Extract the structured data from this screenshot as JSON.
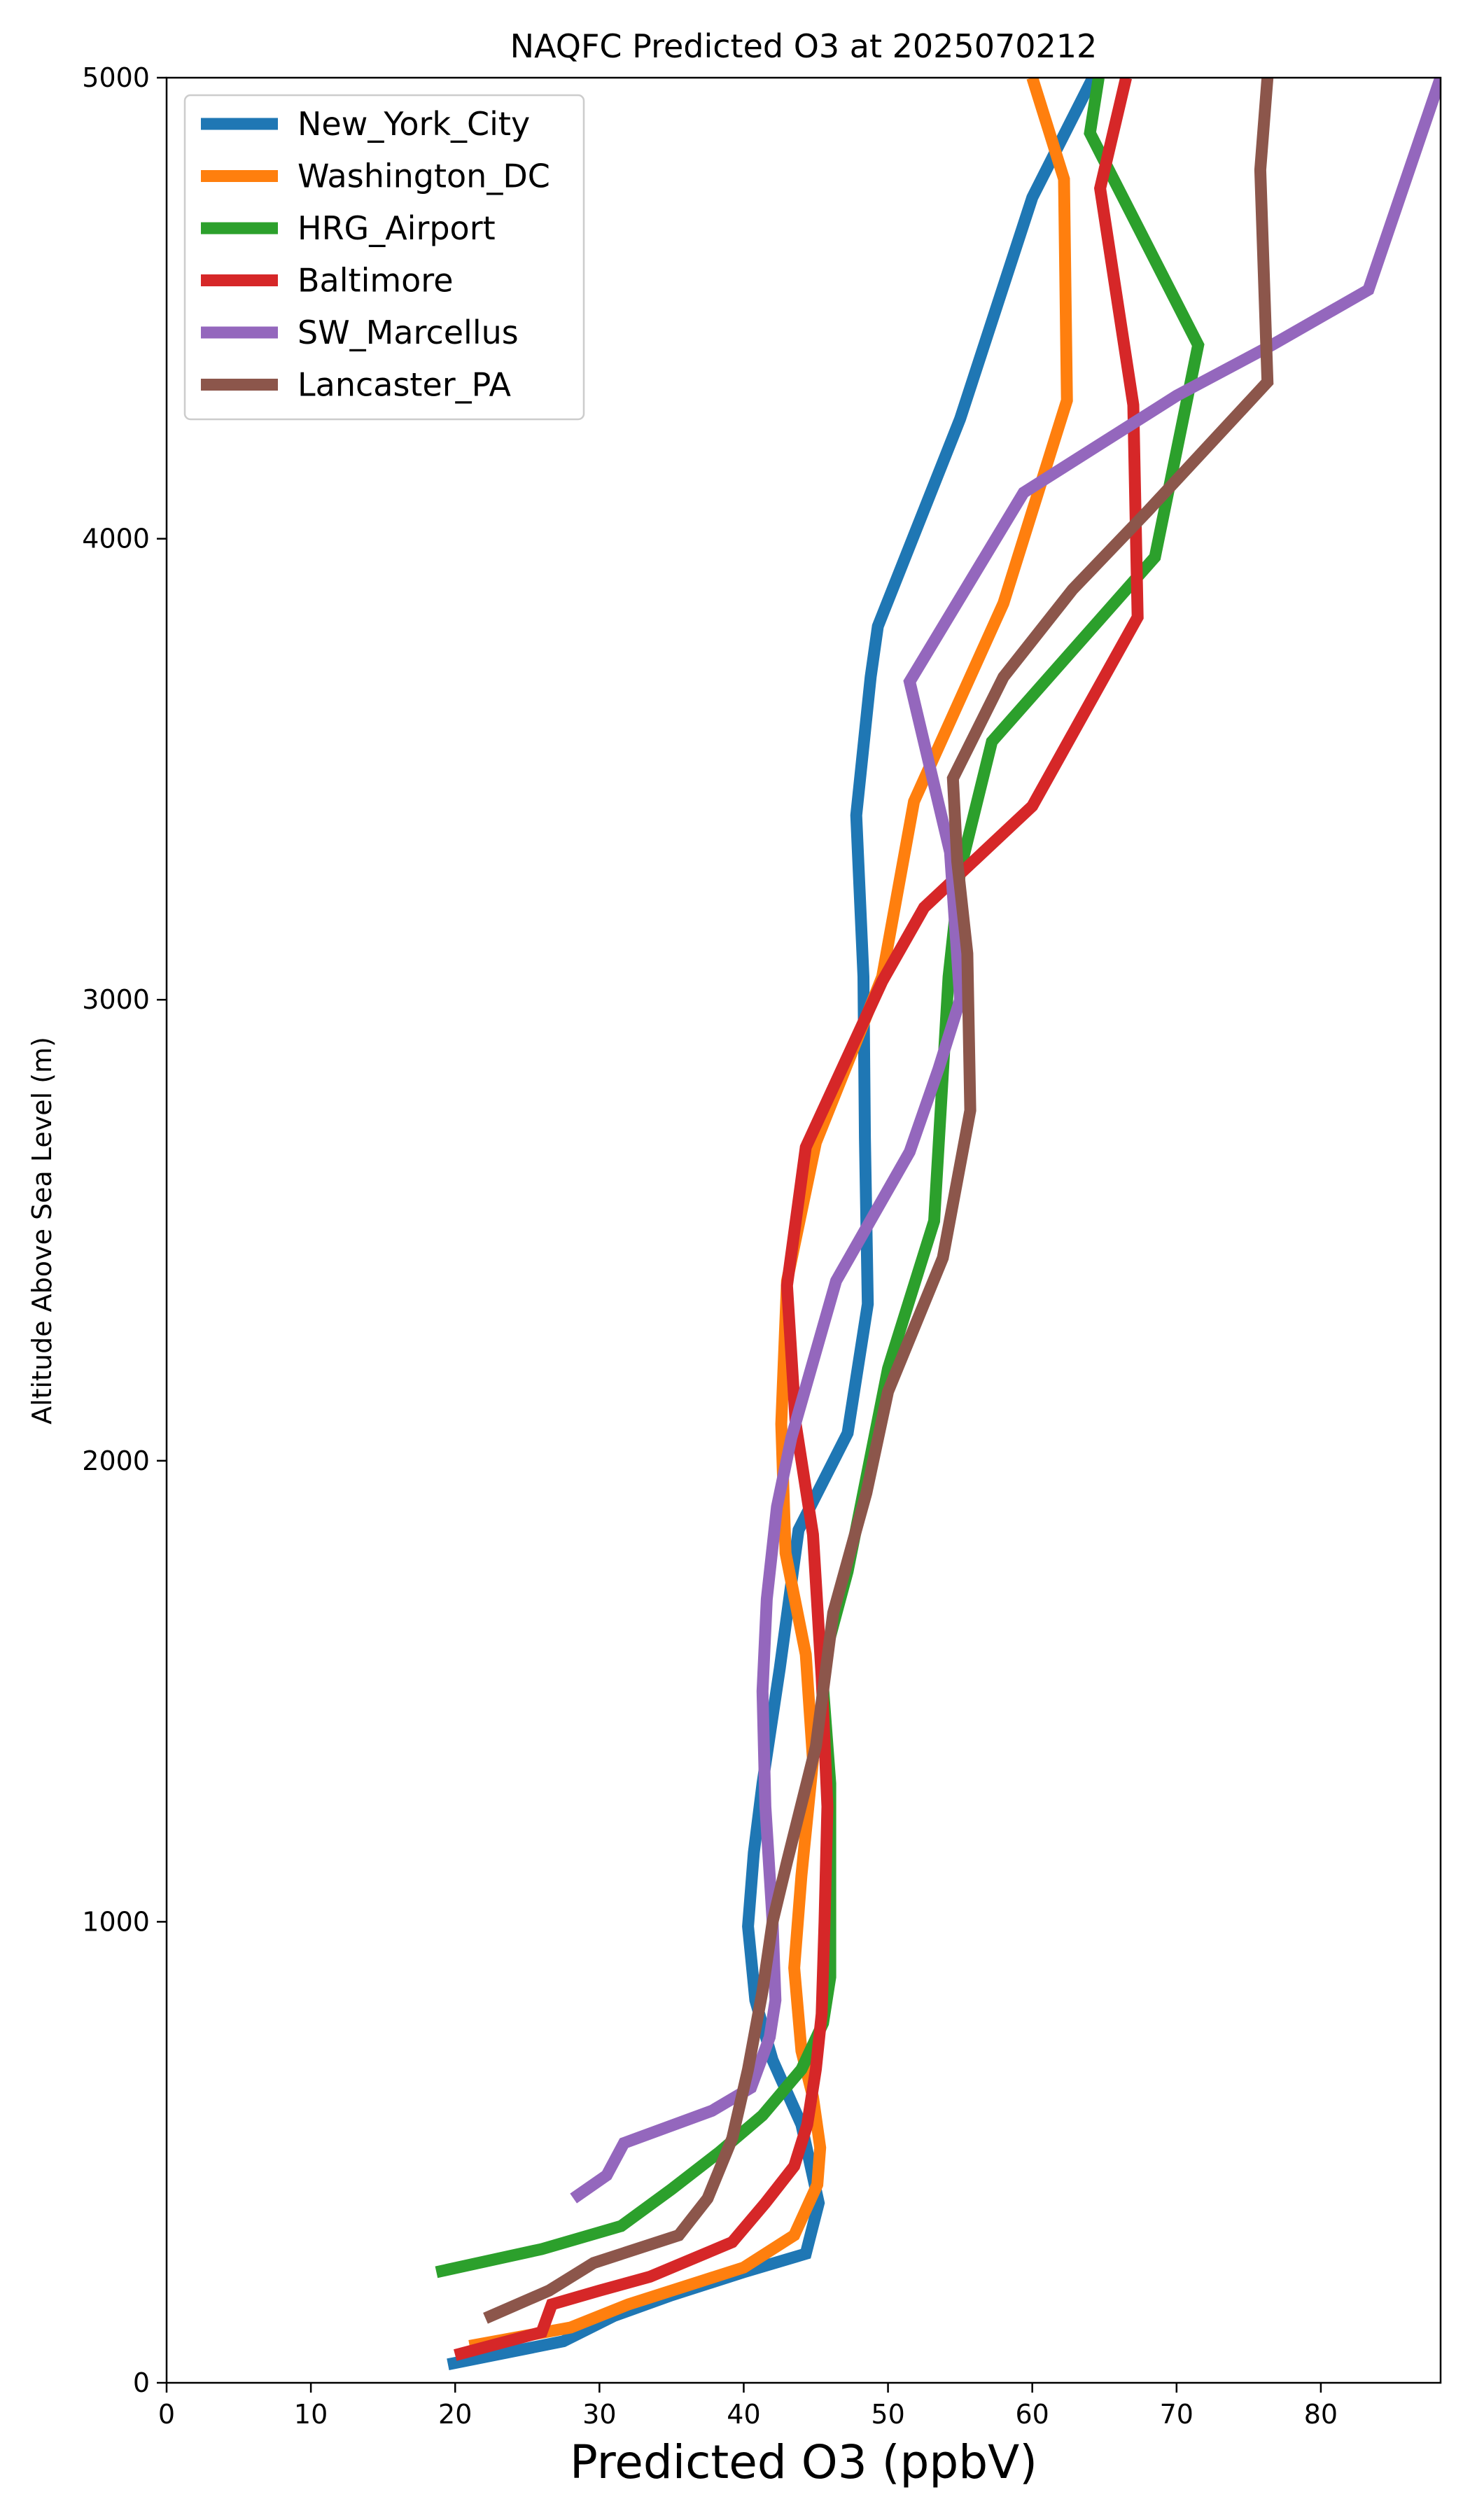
{
  "chart_data": {
    "type": "line",
    "title": "NAQFC Predicted O3 at 2025070212",
    "xlabel": "Predicted O3 (ppbV)",
    "ylabel": "Altitude Above Sea Level (m)",
    "xlim": [
      0,
      88.3
    ],
    "ylim": [
      0,
      5000
    ],
    "xticks": [
      0,
      10,
      20,
      30,
      40,
      50,
      60,
      70,
      80
    ],
    "yticks": [
      0,
      1000,
      2000,
      3000,
      4000,
      5000
    ],
    "grid": false,
    "legend_position": "top-left",
    "series": [
      {
        "name": "New_York_City",
        "color": "#1f77b4",
        "points": [
          [
            19.5,
            40
          ],
          [
            27.5,
            90
          ],
          [
            31,
            145
          ],
          [
            35,
            190
          ],
          [
            40,
            240
          ],
          [
            44.3,
            280
          ],
          [
            45.2,
            390
          ],
          [
            44,
            560
          ],
          [
            42,
            700
          ],
          [
            40.8,
            830
          ],
          [
            40.3,
            990
          ],
          [
            40.7,
            1150
          ],
          [
            41.3,
            1300
          ],
          [
            42.5,
            1550
          ],
          [
            43.8,
            1850
          ],
          [
            47.2,
            2060
          ],
          [
            48.6,
            2340
          ],
          [
            48.4,
            2700
          ],
          [
            48.3,
            3050
          ],
          [
            47.8,
            3400
          ],
          [
            48.8,
            3700
          ],
          [
            49.3,
            3810
          ],
          [
            55,
            4260
          ],
          [
            60,
            4740
          ],
          [
            64.2,
            5000
          ]
        ]
      },
      {
        "name": "Washington_DC",
        "color": "#ff7f0e",
        "points": [
          [
            21,
            80
          ],
          [
            28,
            120
          ],
          [
            32,
            170
          ],
          [
            37,
            220
          ],
          [
            40,
            250
          ],
          [
            43.5,
            320
          ],
          [
            45.1,
            430
          ],
          [
            45.3,
            510
          ],
          [
            44.8,
            620
          ],
          [
            44,
            720
          ],
          [
            43.5,
            900
          ],
          [
            44,
            1100
          ],
          [
            44.8,
            1350
          ],
          [
            44.3,
            1580
          ],
          [
            42.9,
            1800
          ],
          [
            42.6,
            2080
          ],
          [
            43,
            2390
          ],
          [
            45,
            2690
          ],
          [
            49.6,
            3050
          ],
          [
            51.8,
            3430
          ],
          [
            58,
            3860
          ],
          [
            62.4,
            4300
          ],
          [
            62.2,
            4780
          ],
          [
            60,
            5000
          ]
        ]
      },
      {
        "name": "HRG_Airport",
        "color": "#2ca02c",
        "points": [
          [
            18.7,
            240
          ],
          [
            26,
            290
          ],
          [
            31.5,
            340
          ],
          [
            35,
            420
          ],
          [
            38.3,
            500
          ],
          [
            41.3,
            580
          ],
          [
            44,
            680
          ],
          [
            45.5,
            780
          ],
          [
            46,
            880
          ],
          [
            46,
            1050
          ],
          [
            46,
            1300
          ],
          [
            45.4,
            1550
          ],
          [
            47.2,
            1760
          ],
          [
            50,
            2200
          ],
          [
            53.2,
            2520
          ],
          [
            54.2,
            3050
          ],
          [
            55,
            3280
          ],
          [
            57.2,
            3560
          ],
          [
            68.5,
            3960
          ],
          [
            71.5,
            4420
          ],
          [
            64,
            4880
          ],
          [
            64.6,
            5000
          ]
        ]
      },
      {
        "name": "Baltimore",
        "color": "#d62728",
        "points": [
          [
            20,
            60
          ],
          [
            26,
            110
          ],
          [
            26.7,
            170
          ],
          [
            30,
            200
          ],
          [
            33.5,
            230
          ],
          [
            39.2,
            305
          ],
          [
            41.5,
            390
          ],
          [
            43.5,
            470
          ],
          [
            44.4,
            560
          ],
          [
            45,
            680
          ],
          [
            45.4,
            800
          ],
          [
            45.6,
            1000
          ],
          [
            45.8,
            1250
          ],
          [
            45.4,
            1530
          ],
          [
            44.8,
            1840
          ],
          [
            43.6,
            2080
          ],
          [
            43,
            2380
          ],
          [
            44.3,
            2680
          ],
          [
            49.6,
            3040
          ],
          [
            52.5,
            3200
          ],
          [
            60,
            3420
          ],
          [
            67.3,
            3830
          ],
          [
            67,
            4290
          ],
          [
            64.7,
            4760
          ],
          [
            66.5,
            5000
          ]
        ]
      },
      {
        "name": "SW_Marcellus",
        "color": "#9467bd",
        "points": [
          [
            28.2,
            400
          ],
          [
            30.5,
            450
          ],
          [
            31.7,
            520
          ],
          [
            37.8,
            590
          ],
          [
            40.5,
            640
          ],
          [
            41.8,
            750
          ],
          [
            42.2,
            830
          ],
          [
            42,
            1000
          ],
          [
            41.5,
            1250
          ],
          [
            41.3,
            1500
          ],
          [
            41.6,
            1700
          ],
          [
            42.3,
            1900
          ],
          [
            43.3,
            2050
          ],
          [
            46.4,
            2390
          ],
          [
            51.5,
            2670
          ],
          [
            53.5,
            2850
          ],
          [
            55,
            3000
          ],
          [
            54.3,
            3320
          ],
          [
            51.5,
            3690
          ],
          [
            59.4,
            4100
          ],
          [
            70,
            4310
          ],
          [
            76.6,
            4420
          ],
          [
            83.3,
            4540
          ],
          [
            88.3,
            5000
          ]
        ]
      },
      {
        "name": "Lancaster_PA",
        "color": "#8c564b",
        "points": [
          [
            22.1,
            140
          ],
          [
            26.5,
            200
          ],
          [
            29.6,
            260
          ],
          [
            35.5,
            320
          ],
          [
            37.5,
            400
          ],
          [
            39.2,
            530
          ],
          [
            40.3,
            680
          ],
          [
            41.3,
            850
          ],
          [
            42,
            1000
          ],
          [
            43,
            1130
          ],
          [
            45,
            1380
          ],
          [
            46.2,
            1670
          ],
          [
            48.5,
            1930
          ],
          [
            50,
            2150
          ],
          [
            53.8,
            2440
          ],
          [
            55.7,
            2760
          ],
          [
            55.5,
            3100
          ],
          [
            54.8,
            3300
          ],
          [
            54.5,
            3480
          ],
          [
            58,
            3700
          ],
          [
            62.8,
            3890
          ],
          [
            68,
            4060
          ],
          [
            76.3,
            4340
          ],
          [
            75.8,
            4800
          ],
          [
            76.3,
            5000
          ]
        ]
      }
    ]
  }
}
